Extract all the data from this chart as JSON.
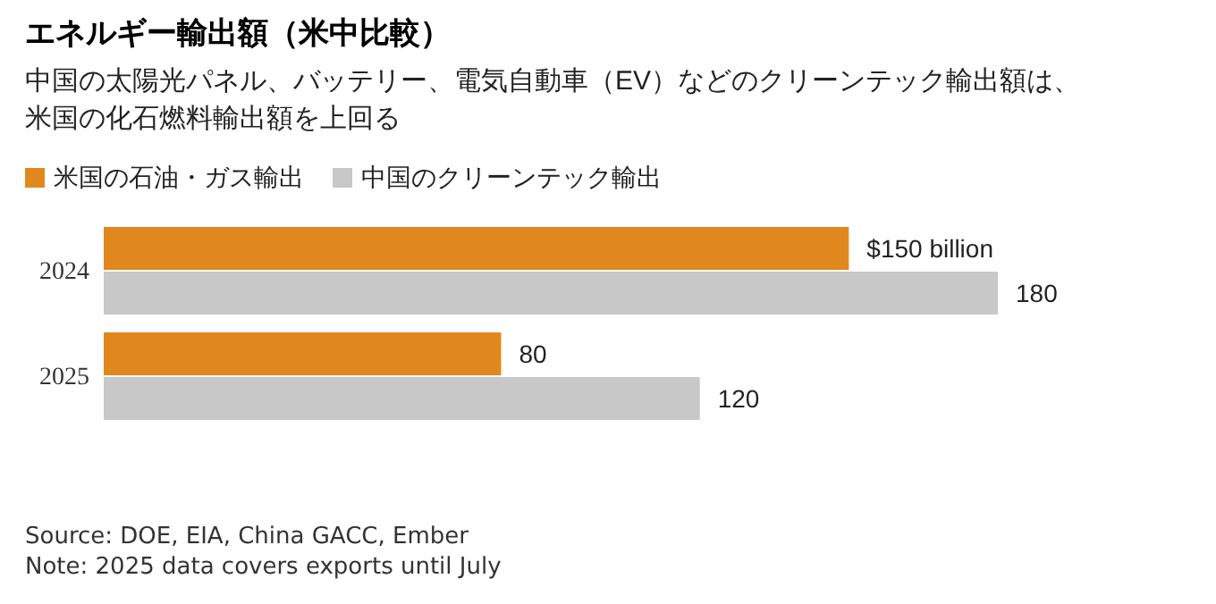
{
  "chart_data": {
    "type": "bar",
    "orientation": "horizontal",
    "title": "エネルギー輸出額（米中比較）",
    "subtitle": "中国の太陽光パネル、バッテリー、電気自動車（EV）などのクリーンテック輸出額は、米国の化石燃料輸出額を上回る",
    "categories": [
      "2024",
      "2025"
    ],
    "series": [
      {
        "name": "米国の石油・ガス輸出",
        "color": "#e0881e",
        "values": [
          150,
          80
        ],
        "value_labels": [
          "$150 billion",
          "80"
        ]
      },
      {
        "name": "中国のクリーンテック輸出",
        "color": "#c8c8c8",
        "values": [
          180,
          120
        ],
        "value_labels": [
          "180",
          "120"
        ]
      }
    ],
    "legend": "top left",
    "annotations": [
      "Source: DOE, EIA, China GACC, Ember",
      "Note: 2025 data covers exports until July"
    ]
  }
}
